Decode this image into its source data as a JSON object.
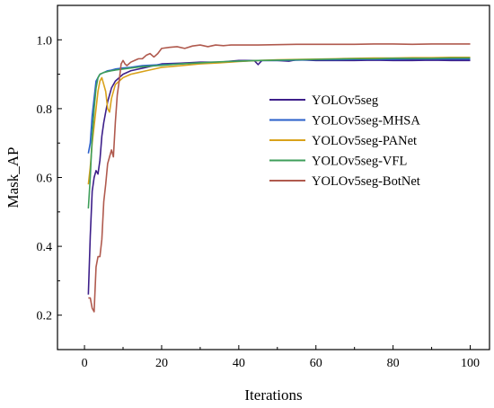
{
  "chart_data": {
    "type": "line",
    "xlabel": "Iterations",
    "ylabel": "Mask_AP",
    "xlim": [
      -7,
      105
    ],
    "ylim": [
      0.1,
      1.1
    ],
    "xticks": [
      0,
      20,
      40,
      60,
      80,
      100
    ],
    "xtick_labels": [
      "0",
      "20",
      "40",
      "60",
      "80",
      "100"
    ],
    "yticks": [
      0.2,
      0.4,
      0.6,
      0.8,
      1.0
    ],
    "ytick_labels": [
      "0.2",
      "0.4",
      "0.6",
      "0.8",
      "1.0"
    ],
    "grid": false,
    "legend": {
      "position": "center-right",
      "frame": false
    },
    "series": [
      {
        "name": "YOLOv5seg",
        "color": "#3d1f8a",
        "points": [
          [
            1,
            0.26
          ],
          [
            1.5,
            0.43
          ],
          [
            2,
            0.56
          ],
          [
            2.5,
            0.6
          ],
          [
            3,
            0.62
          ],
          [
            3.5,
            0.61
          ],
          [
            4,
            0.65
          ],
          [
            4.5,
            0.72
          ],
          [
            5,
            0.76
          ],
          [
            6,
            0.82
          ],
          [
            7,
            0.86
          ],
          [
            8,
            0.88
          ],
          [
            9,
            0.89
          ],
          [
            10,
            0.9
          ],
          [
            12,
            0.91
          ],
          [
            14,
            0.915
          ],
          [
            16,
            0.92
          ],
          [
            18,
            0.925
          ],
          [
            20,
            0.93
          ],
          [
            25,
            0.932
          ],
          [
            30,
            0.935
          ],
          [
            35,
            0.935
          ],
          [
            40,
            0.94
          ],
          [
            44,
            0.94
          ],
          [
            45,
            0.928
          ],
          [
            46,
            0.94
          ],
          [
            50,
            0.94
          ],
          [
            53,
            0.938
          ],
          [
            55,
            0.942
          ],
          [
            60,
            0.94
          ],
          [
            65,
            0.94
          ],
          [
            70,
            0.94
          ],
          [
            75,
            0.941
          ],
          [
            80,
            0.94
          ],
          [
            85,
            0.94
          ],
          [
            90,
            0.941
          ],
          [
            95,
            0.94
          ],
          [
            100,
            0.94
          ]
        ]
      },
      {
        "name": "YOLOv5seg-MHSA",
        "color": "#2a5fc9",
        "points": [
          [
            1,
            0.67
          ],
          [
            1.5,
            0.7
          ],
          [
            2,
            0.78
          ],
          [
            3,
            0.88
          ],
          [
            4,
            0.9
          ],
          [
            5,
            0.905
          ],
          [
            6,
            0.91
          ],
          [
            7,
            0.912
          ],
          [
            8,
            0.915
          ],
          [
            10,
            0.918
          ],
          [
            12,
            0.92
          ],
          [
            15,
            0.925
          ],
          [
            20,
            0.928
          ],
          [
            25,
            0.93
          ],
          [
            30,
            0.933
          ],
          [
            35,
            0.935
          ],
          [
            40,
            0.938
          ],
          [
            45,
            0.94
          ],
          [
            50,
            0.94
          ],
          [
            55,
            0.941
          ],
          [
            60,
            0.942
          ],
          [
            65,
            0.942
          ],
          [
            70,
            0.943
          ],
          [
            75,
            0.943
          ],
          [
            80,
            0.943
          ],
          [
            85,
            0.944
          ],
          [
            90,
            0.944
          ],
          [
            95,
            0.944
          ],
          [
            100,
            0.944
          ]
        ]
      },
      {
        "name": "YOLOv5seg-PANet",
        "color": "#d9a21b",
        "points": [
          [
            1,
            0.58
          ],
          [
            1.5,
            0.63
          ],
          [
            2,
            0.7
          ],
          [
            2.5,
            0.75
          ],
          [
            3,
            0.8
          ],
          [
            3.5,
            0.85
          ],
          [
            4,
            0.88
          ],
          [
            4.5,
            0.89
          ],
          [
            5,
            0.87
          ],
          [
            5.5,
            0.85
          ],
          [
            6,
            0.8
          ],
          [
            6.5,
            0.79
          ],
          [
            7,
            0.83
          ],
          [
            8,
            0.87
          ],
          [
            9,
            0.88
          ],
          [
            10,
            0.89
          ],
          [
            12,
            0.9
          ],
          [
            14,
            0.905
          ],
          [
            16,
            0.91
          ],
          [
            18,
            0.915
          ],
          [
            20,
            0.92
          ],
          [
            25,
            0.925
          ],
          [
            30,
            0.93
          ],
          [
            35,
            0.933
          ],
          [
            40,
            0.937
          ],
          [
            45,
            0.94
          ],
          [
            50,
            0.942
          ],
          [
            55,
            0.943
          ],
          [
            60,
            0.944
          ],
          [
            65,
            0.945
          ],
          [
            70,
            0.946
          ],
          [
            75,
            0.947
          ],
          [
            80,
            0.947
          ],
          [
            85,
            0.948
          ],
          [
            90,
            0.948
          ],
          [
            95,
            0.949
          ],
          [
            100,
            0.949
          ]
        ]
      },
      {
        "name": "YOLOv5seg-VFL",
        "color": "#3e9e5a",
        "points": [
          [
            1,
            0.51
          ],
          [
            1.5,
            0.6
          ],
          [
            2,
            0.72
          ],
          [
            2.5,
            0.8
          ],
          [
            3,
            0.86
          ],
          [
            3.5,
            0.89
          ],
          [
            4,
            0.9
          ],
          [
            5,
            0.905
          ],
          [
            6,
            0.908
          ],
          [
            7,
            0.91
          ],
          [
            8,
            0.912
          ],
          [
            10,
            0.915
          ],
          [
            12,
            0.918
          ],
          [
            15,
            0.922
          ],
          [
            20,
            0.926
          ],
          [
            25,
            0.93
          ],
          [
            30,
            0.933
          ],
          [
            35,
            0.936
          ],
          [
            40,
            0.938
          ],
          [
            45,
            0.94
          ],
          [
            50,
            0.941
          ],
          [
            55,
            0.942
          ],
          [
            60,
            0.943
          ],
          [
            65,
            0.944
          ],
          [
            70,
            0.945
          ],
          [
            75,
            0.945
          ],
          [
            80,
            0.946
          ],
          [
            85,
            0.946
          ],
          [
            90,
            0.946
          ],
          [
            95,
            0.947
          ],
          [
            100,
            0.947
          ]
        ]
      },
      {
        "name": "YOLOv5seg-BotNet",
        "color": "#b05a4e",
        "points": [
          [
            1,
            0.25
          ],
          [
            1.5,
            0.25
          ],
          [
            2,
            0.22
          ],
          [
            2.5,
            0.21
          ],
          [
            3,
            0.34
          ],
          [
            3.5,
            0.37
          ],
          [
            4,
            0.37
          ],
          [
            4.5,
            0.42
          ],
          [
            5,
            0.53
          ],
          [
            5.5,
            0.58
          ],
          [
            6,
            0.64
          ],
          [
            6.5,
            0.66
          ],
          [
            7,
            0.68
          ],
          [
            7.5,
            0.66
          ],
          [
            8,
            0.76
          ],
          [
            8.5,
            0.84
          ],
          [
            9,
            0.88
          ],
          [
            9.5,
            0.93
          ],
          [
            10,
            0.94
          ],
          [
            10.5,
            0.93
          ],
          [
            11,
            0.925
          ],
          [
            12,
            0.935
          ],
          [
            13,
            0.94
          ],
          [
            14,
            0.945
          ],
          [
            15,
            0.945
          ],
          [
            16,
            0.955
          ],
          [
            17,
            0.96
          ],
          [
            18,
            0.95
          ],
          [
            19,
            0.96
          ],
          [
            20,
            0.975
          ],
          [
            22,
            0.978
          ],
          [
            24,
            0.98
          ],
          [
            26,
            0.975
          ],
          [
            28,
            0.982
          ],
          [
            30,
            0.985
          ],
          [
            32,
            0.98
          ],
          [
            34,
            0.985
          ],
          [
            36,
            0.983
          ],
          [
            38,
            0.985
          ],
          [
            40,
            0.985
          ],
          [
            45,
            0.985
          ],
          [
            50,
            0.986
          ],
          [
            55,
            0.987
          ],
          [
            60,
            0.987
          ],
          [
            65,
            0.987
          ],
          [
            70,
            0.987
          ],
          [
            75,
            0.988
          ],
          [
            80,
            0.988
          ],
          [
            85,
            0.987
          ],
          [
            90,
            0.988
          ],
          [
            95,
            0.988
          ],
          [
            100,
            0.988
          ]
        ]
      }
    ]
  }
}
